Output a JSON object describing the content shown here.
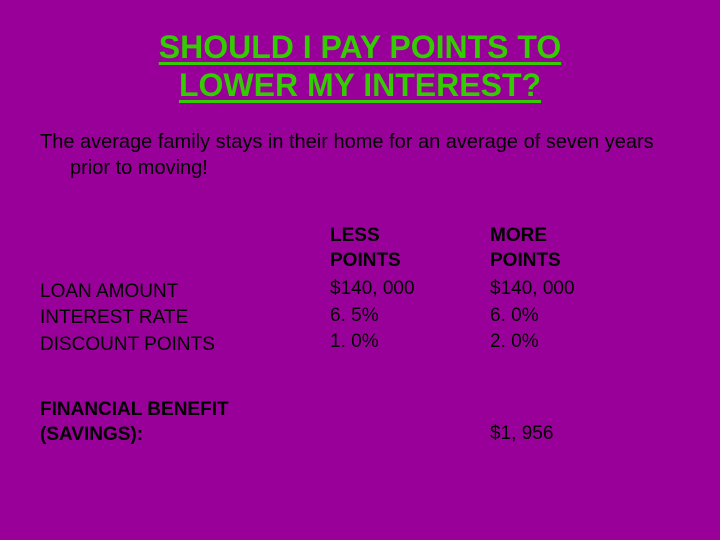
{
  "title_line1": "SHOULD I PAY POINTS TO",
  "title_line2": "LOWER MY INTEREST?",
  "subtitle": "The average family stays in their home for an average of seven years prior to moving!",
  "labels": {
    "loan": "LOAN AMOUNT",
    "rate": "INTEREST RATE",
    "discount": "DISCOUNT POINTS"
  },
  "less": {
    "header1": "LESS",
    "header2": "POINTS",
    "loan": "$140, 000",
    "rate": "6. 5%",
    "discount": "1. 0%"
  },
  "more": {
    "header1": "MORE",
    "header2": "POINTS",
    "loan": "$140, 000",
    "rate": "6. 0%",
    "discount": "2. 0%"
  },
  "footer": {
    "label1": "FINANCIAL BENEFIT",
    "label2": "(SAVINGS):",
    "value": "$1, 956"
  },
  "colors": {
    "background": "#990099",
    "title": "#33cc00",
    "text": "#000000"
  }
}
